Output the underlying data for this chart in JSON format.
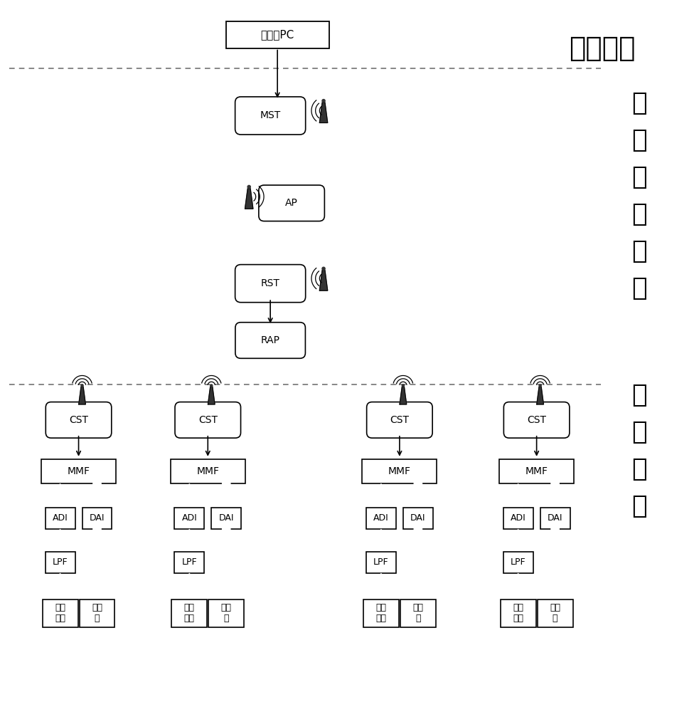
{
  "bg_color": "#ffffff",
  "label_guanli": "管理单元",
  "label_wuxian_chars": [
    "无",
    "线",
    "传",
    "输",
    "单",
    "元"
  ],
  "label_kongzhi_chars": [
    "控",
    "制",
    "单",
    "元"
  ],
  "label_pc": "用户端PC",
  "label_mst": "MST",
  "label_ap": "AP",
  "label_rst": "RST",
  "label_rap": "RAP",
  "label_cst": "CST",
  "label_mmf": "MMF",
  "label_adi": "ADI",
  "label_dai": "DAI",
  "label_lpf": "LPF",
  "label_temp_line1": "温度",
  "label_temp_line2": "对象",
  "label_exec_line1": "执行",
  "label_exec_line2": "器",
  "dashed_line_color": "#666666",
  "box_edge_color": "#000000",
  "text_color": "#000000"
}
